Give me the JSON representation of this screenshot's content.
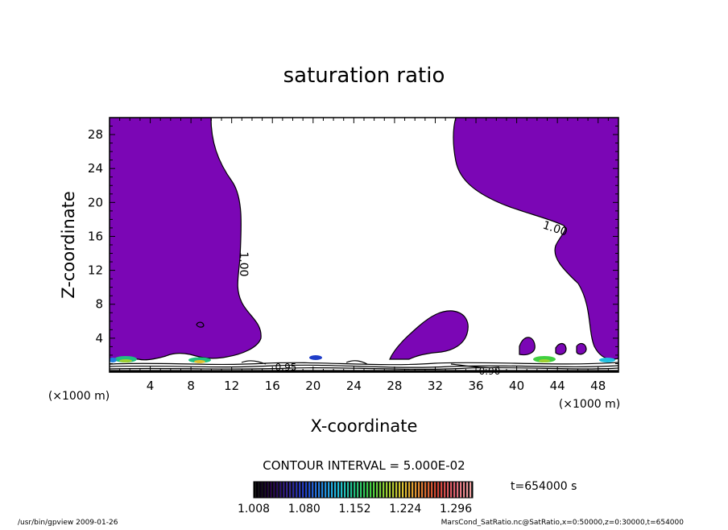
{
  "chart_data": {
    "type": "contour",
    "title": "saturation ratio",
    "xlabel": "X-coordinate",
    "ylabel": "Z-coordinate",
    "x_unit_label": "(×1000 m)",
    "y_unit_label": "(×1000 m)",
    "xlim": [
      0,
      50
    ],
    "ylim": [
      0,
      30
    ],
    "x_ticks": [
      4,
      8,
      12,
      16,
      20,
      24,
      28,
      32,
      36,
      40,
      44,
      48
    ],
    "y_ticks": [
      4,
      8,
      12,
      16,
      20,
      24,
      28
    ],
    "contour_interval_text": "CONTOUR INTERVAL = 5.000E-02",
    "contour_line_labels": [
      "1.00",
      "1.00",
      "0.95",
      "0.90"
    ],
    "time_label": "t=654000 s",
    "colorbar": {
      "range": [
        1.008,
        1.32
      ],
      "tick_labels": [
        "1.008",
        "1.080",
        "1.152",
        "1.224",
        "1.296"
      ],
      "colors": [
        "#000000",
        "#200040",
        "#30208a",
        "#1e3cc8",
        "#2080e0",
        "#20c0e0",
        "#20c080",
        "#40d040",
        "#a0d030",
        "#e0c030",
        "#e08030",
        "#d04030",
        "#e06070",
        "#f0a0a0"
      ]
    },
    "fill_color": "#7b06b5"
  },
  "footer": {
    "left": "/usr/bin/gpview   2009-01-26",
    "right": "MarsCond_SatRatio.nc@SatRatio,x=0:50000,z=0:30000,t=654000"
  }
}
